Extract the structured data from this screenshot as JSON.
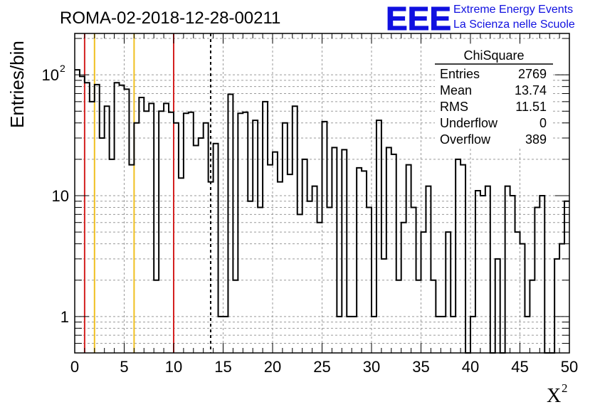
{
  "chart_data": {
    "type": "bar",
    "title": "ROMA-02-2018-12-28-00211",
    "xlabel": "X",
    "xlabel_superscript": "2",
    "ylabel": "Entries/bin",
    "xlim": [
      0,
      50
    ],
    "ylim": [
      0.5,
      220
    ],
    "yscale": "log",
    "grid": "horizontal-dashed",
    "bin_width": 0.5,
    "x_ticks": [
      0,
      5,
      10,
      15,
      20,
      25,
      30,
      35,
      40,
      45,
      50
    ],
    "y_ticks": [
      {
        "value": 1,
        "label": "1"
      },
      {
        "value": 10,
        "label": "10"
      },
      {
        "value": 100,
        "label": "10",
        "sup": "2"
      }
    ],
    "values": [
      110,
      97,
      86,
      60,
      83,
      30,
      55,
      20,
      86,
      82,
      76,
      18,
      40,
      65,
      50,
      58,
      2,
      50,
      58,
      49,
      40,
      14,
      48,
      49,
      26,
      30,
      40,
      13,
      27,
      1,
      1,
      69,
      2,
      48,
      49,
      9,
      42,
      8,
      60,
      18,
      23,
      13,
      40,
      15,
      55,
      7,
      20,
      9,
      12,
      6,
      41,
      8,
      25,
      1,
      24,
      1,
      1,
      17,
      16,
      8,
      1,
      42,
      3,
      25,
      22,
      2,
      6,
      18,
      8,
      2,
      5,
      12,
      2,
      1,
      1,
      5,
      1,
      20,
      18,
      0.3,
      1,
      11,
      10,
      12,
      0.3,
      3,
      0.3,
      12,
      10,
      5,
      4,
      1,
      2,
      8,
      10,
      0.3,
      0.3,
      3,
      4,
      9
    ],
    "vertical_lines": [
      {
        "x": 1,
        "color": "#d42020",
        "style": "solid"
      },
      {
        "x": 2,
        "color": "#f0c020",
        "style": "solid"
      },
      {
        "x": 6,
        "color": "#f0c020",
        "style": "solid"
      },
      {
        "x": 10,
        "color": "#d42020",
        "style": "solid"
      },
      {
        "x": 13.74,
        "color": "#000000",
        "style": "dashed"
      }
    ],
    "stats_box": {
      "title": "ChiSquare",
      "rows": [
        {
          "label": "Entries",
          "value": "2769"
        },
        {
          "label": "Mean",
          "value": "13.74"
        },
        {
          "label": "RMS",
          "value": "11.51"
        },
        {
          "label": "Underflow",
          "value": "0"
        },
        {
          "label": "Overflow",
          "value": "389"
        }
      ]
    }
  },
  "logo": {
    "acronym": "EEE",
    "line1": "Extreme Energy Events",
    "line2": "La Scienza nelle Scuole",
    "color": "#1010e0"
  }
}
